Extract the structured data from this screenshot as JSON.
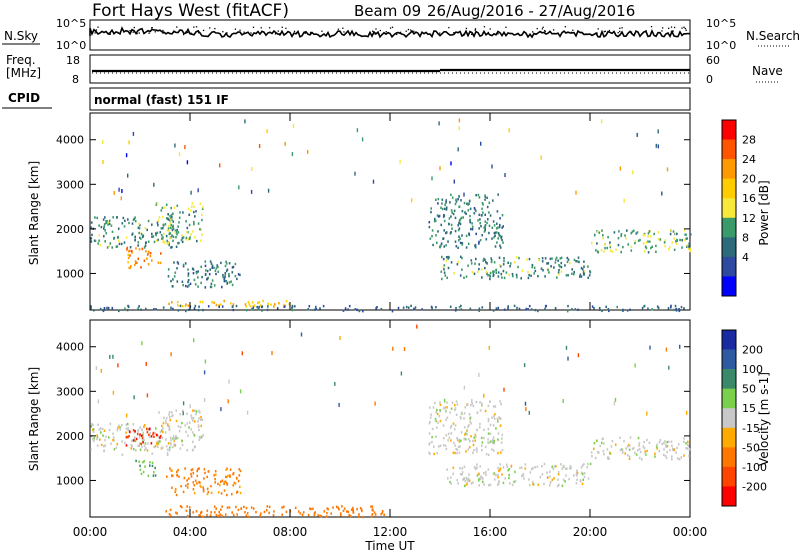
{
  "header": {
    "station": "Fort Hays West (fitACF)",
    "beam": "Beam 09",
    "date_range": "26/Aug/2016 - 27/Aug/2016"
  },
  "noise_panel": {
    "label": "N.Sky",
    "right_label": "N.Search",
    "y_ticks_left": [
      "10^5",
      "10^0"
    ],
    "y_ticks_right": [
      "10^5",
      "10^0"
    ]
  },
  "freq_panel": {
    "label_top": "Freq.",
    "label_bottom": "[MHz]",
    "right_label": "Nave",
    "y_ticks_left": [
      "18",
      "8"
    ],
    "y_ticks_right": [
      "60",
      "0"
    ]
  },
  "cpid": {
    "label": "CPID",
    "value": "normal (fast) 151 IF"
  },
  "power_colorbar": {
    "label": "Power [dB]",
    "ticks": [
      "28",
      "24",
      "20",
      "16",
      "12",
      "8",
      "4"
    ],
    "colors": [
      "#ff0000",
      "#ff5500",
      "#ff9900",
      "#ffcc00",
      "#f7e83a",
      "#3a9a6a",
      "#2d6a7a",
      "#2d4aa0",
      "#0000ff"
    ]
  },
  "velocity_colorbar": {
    "label": "Velocity [m s-1]",
    "ticks": [
      "200",
      "100",
      "50",
      "15",
      "-15",
      "-50",
      "-100",
      "-200"
    ],
    "colors": [
      "#1a2aa0",
      "#2d5aa0",
      "#3a8a6a",
      "#7ad04a",
      "#c8c8c8",
      "#ffaa00",
      "#ff7700",
      "#ff4400",
      "#ff0000"
    ]
  },
  "x_axis": {
    "label": "Time UT",
    "ticks": [
      "00:00",
      "04:00",
      "08:00",
      "12:00",
      "16:00",
      "20:00",
      "00:00"
    ]
  },
  "chart_data": [
    {
      "type": "heatmap",
      "panel": "power",
      "ylabel": "Slant Range [km]",
      "xlabel": "Time UT",
      "y_ticks": [
        1000,
        2000,
        3000,
        4000
      ],
      "ylim": [
        180,
        4600
      ],
      "xlim_hours": [
        0,
        24
      ],
      "colorbar_range_db": [
        0,
        30
      ],
      "scatter_features": [
        {
          "t_start": 0.0,
          "t_end": 3.5,
          "r_start": 1600,
          "r_end": 2300,
          "power": 10
        },
        {
          "t_start": 1.4,
          "t_end": 2.8,
          "r_start": 1150,
          "r_end": 1600,
          "power": 24
        },
        {
          "t_start": 2.6,
          "t_end": 4.5,
          "r_start": 1700,
          "r_end": 2600,
          "power": 12
        },
        {
          "t_start": 3.0,
          "t_end": 6.0,
          "r_start": 700,
          "r_end": 1300,
          "power": 8
        },
        {
          "t_start": 3.0,
          "t_end": 8.0,
          "r_start": 280,
          "r_end": 420,
          "power": 20
        },
        {
          "t_start": 0.0,
          "t_end": 24.0,
          "r_start": 180,
          "r_end": 300,
          "power": 6
        },
        {
          "t_start": 13.5,
          "t_end": 16.5,
          "r_start": 1600,
          "r_end": 2800,
          "power": 9
        },
        {
          "t_start": 14.0,
          "t_end": 20.0,
          "r_start": 900,
          "r_end": 1400,
          "power": 10
        },
        {
          "t_start": 20.0,
          "t_end": 24.0,
          "r_start": 1500,
          "r_end": 2000,
          "power": 12
        }
      ]
    },
    {
      "type": "heatmap",
      "panel": "velocity",
      "ylabel": "Slant Range [km]",
      "xlabel": "Time UT",
      "y_ticks": [
        1000,
        2000,
        3000,
        4000
      ],
      "ylim": [
        180,
        4600
      ],
      "xlim_hours": [
        0,
        24
      ],
      "colorbar_range_ms": [
        -200,
        200
      ],
      "scatter_features": [
        {
          "t_start": 0.0,
          "t_end": 3.5,
          "r_start": 1600,
          "r_end": 2300,
          "velocity": 0
        },
        {
          "t_start": 1.4,
          "t_end": 2.8,
          "r_start": 1800,
          "r_end": 2200,
          "velocity": -200
        },
        {
          "t_start": 1.8,
          "t_end": 2.6,
          "r_start": 1100,
          "r_end": 1500,
          "velocity": 40
        },
        {
          "t_start": 2.6,
          "t_end": 4.5,
          "r_start": 1700,
          "r_end": 2600,
          "velocity": 0
        },
        {
          "t_start": 3.0,
          "t_end": 6.0,
          "r_start": 700,
          "r_end": 1300,
          "velocity": -60
        },
        {
          "t_start": 3.0,
          "t_end": 12.0,
          "r_start": 200,
          "r_end": 450,
          "velocity": -70
        },
        {
          "t_start": 13.5,
          "t_end": 16.5,
          "r_start": 1600,
          "r_end": 2800,
          "velocity": 0
        },
        {
          "t_start": 14.0,
          "t_end": 20.0,
          "r_start": 900,
          "r_end": 1400,
          "velocity": 0
        },
        {
          "t_start": 20.0,
          "t_end": 24.0,
          "r_start": 1500,
          "r_end": 2000,
          "velocity": 0
        }
      ]
    }
  ]
}
